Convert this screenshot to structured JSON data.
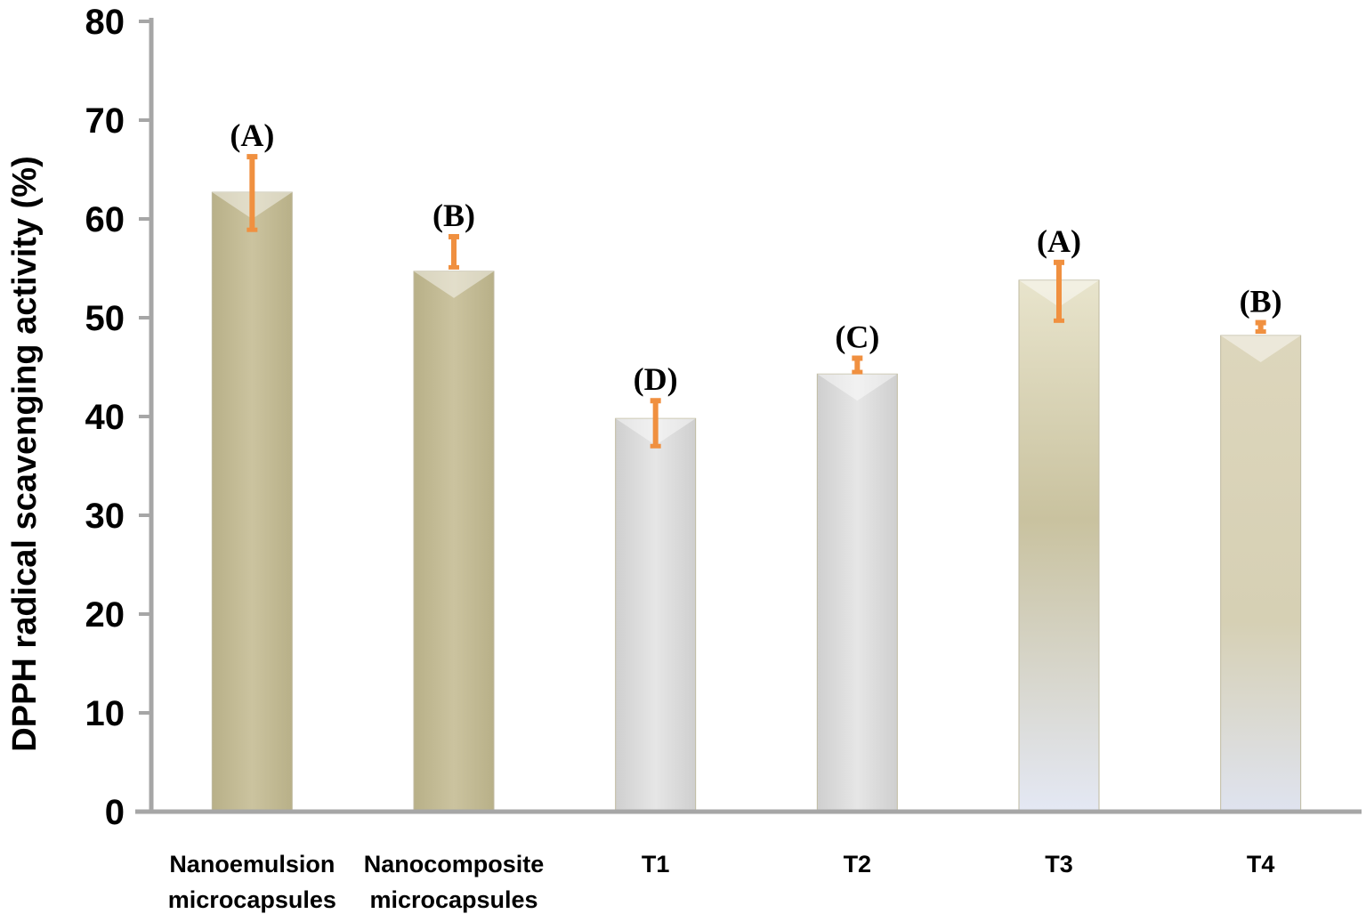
{
  "chart_data": {
    "type": "bar",
    "title": "",
    "xlabel": "",
    "ylabel": "DPPH radical scavenging activity (%)",
    "ylim": [
      0,
      80
    ],
    "yticks": [
      0,
      10,
      20,
      30,
      40,
      50,
      60,
      70,
      80
    ],
    "grid": false,
    "legend": "none",
    "categories": [
      [
        "Nanoemulsion",
        "microcapsules"
      ],
      [
        "Nanocomposite",
        "microcapsules"
      ],
      [
        "T1"
      ],
      [
        "T2"
      ],
      [
        "T3"
      ],
      [
        "T4"
      ]
    ],
    "values": [
      62.7,
      54.7,
      39.8,
      44.3,
      53.8,
      48.2
    ],
    "error_upper": [
      66.3,
      58.2,
      41.6,
      45.9,
      55.6,
      49.5
    ],
    "error_lower": [
      58.9,
      55.1,
      37.0,
      44.5,
      49.7,
      48.6
    ],
    "annotations": [
      "(A)",
      "(B)",
      "(D)",
      "(C)",
      "(A)",
      "(B)"
    ],
    "colors": {
      "bar_khaki": "#c8c09a",
      "bar_gray": "#dcdcdc",
      "error_bar": "#f09040",
      "axis": "#a6a6a6"
    },
    "bar_styles": [
      "khaki",
      "khaki",
      "gray",
      "gray",
      "khaki-fade",
      "khaki-fade"
    ]
  }
}
